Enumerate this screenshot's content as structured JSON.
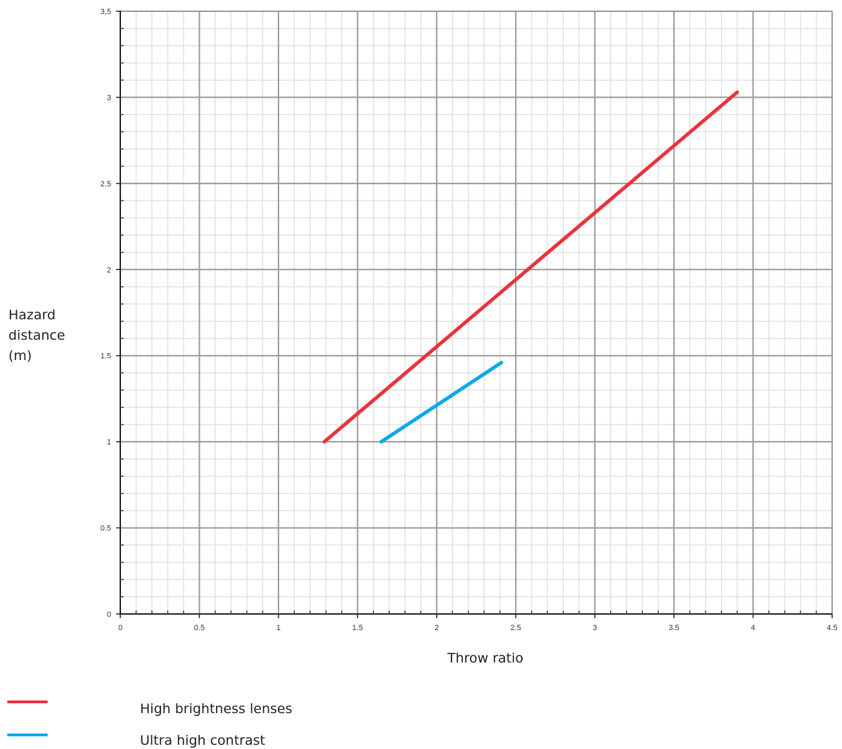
{
  "chart_data": {
    "type": "line",
    "title": "",
    "xlabel": "Throw ratio",
    "ylabel": "Hazard distance (m)",
    "ylabel_lines": [
      "Hazard",
      "distance",
      "(m)"
    ],
    "xlim": [
      0,
      4.5
    ],
    "ylim": [
      0,
      3.5
    ],
    "x_ticks": [
      "0",
      "0.5",
      "1",
      "1.5",
      "2",
      "2.5",
      "3",
      "3.5",
      "4",
      "4.5"
    ],
    "y_ticks": [
      "0",
      "0.5",
      "1",
      "1.5",
      "2",
      "2.5",
      "3",
      "3,5"
    ],
    "grid": true,
    "legend_position": "bottom-left",
    "series": [
      {
        "name": "High brightness lenses",
        "color": "#e8343a",
        "x": [
          1.29,
          3.9
        ],
        "y": [
          1.0,
          3.03
        ]
      },
      {
        "name": "Ultra high contrast",
        "color": "#0aa9e6",
        "x": [
          1.65,
          2.41
        ],
        "y": [
          1.0,
          1.46
        ]
      }
    ]
  }
}
